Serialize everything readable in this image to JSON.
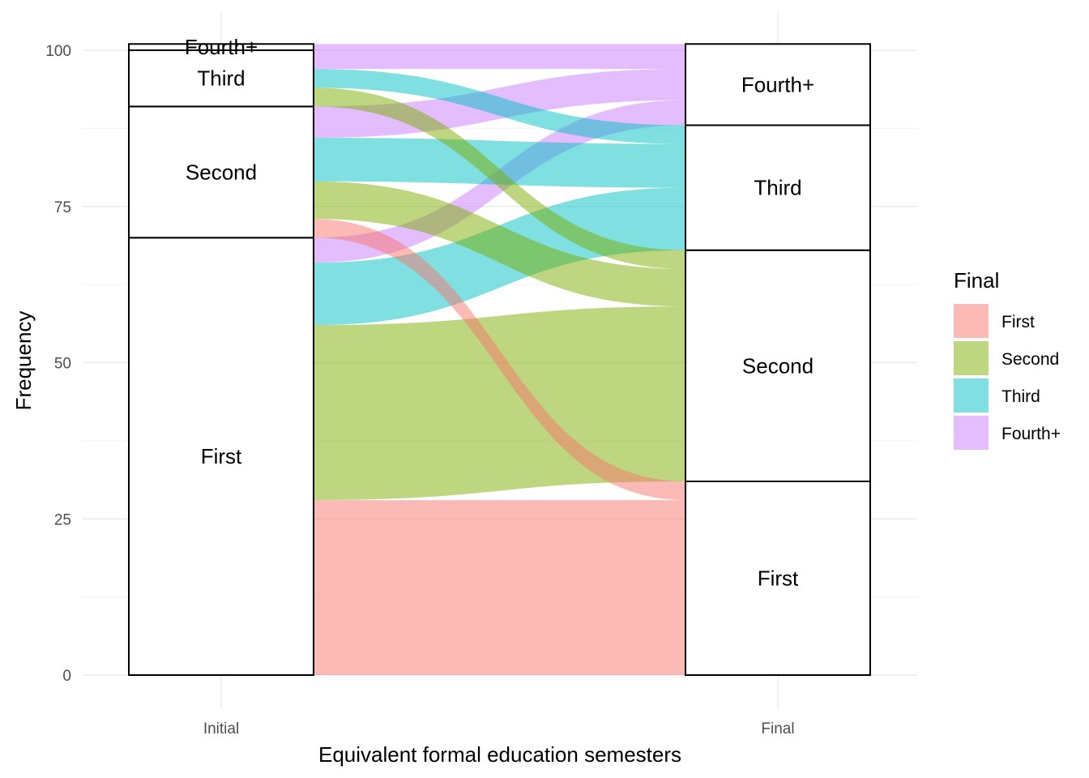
{
  "chart_data": {
    "type": "alluvial",
    "title": "",
    "xlabel": "Equivalent formal education semesters",
    "ylabel": "Frequency",
    "x_axes": [
      "Initial",
      "Final"
    ],
    "ylim": [
      0,
      101
    ],
    "y_ticks": [
      0,
      25,
      50,
      75,
      100
    ],
    "grid": true,
    "levels": [
      "First",
      "Second",
      "Third",
      "Fourth+"
    ],
    "colors": {
      "First": "#F8766D",
      "Second": "#7CAE00",
      "Third": "#00BFC4",
      "Fourth+": "#C77CFF"
    },
    "strata": {
      "Initial": [
        {
          "label": "First",
          "value": 70
        },
        {
          "label": "Second",
          "value": 21
        },
        {
          "label": "Third",
          "value": 9
        },
        {
          "label": "Fourth+",
          "value": 1
        }
      ],
      "Final": [
        {
          "label": "First",
          "value": 31
        },
        {
          "label": "Second",
          "value": 37
        },
        {
          "label": "Third",
          "value": 20
        },
        {
          "label": "Fourth+",
          "value": 13
        }
      ]
    },
    "flows": [
      {
        "from": "First",
        "to": "First",
        "value": 28
      },
      {
        "from": "First",
        "to": "Second",
        "value": 28
      },
      {
        "from": "First",
        "to": "Third",
        "value": 10
      },
      {
        "from": "First",
        "to": "Fourth+",
        "value": 4
      },
      {
        "from": "Second",
        "to": "Second",
        "value": 6
      },
      {
        "from": "Second",
        "to": "Third",
        "value": 7
      },
      {
        "from": "Second",
        "to": "Fourth+",
        "value": 5
      },
      {
        "from": "Second",
        "to": "First",
        "value": 3
      },
      {
        "from": "Third",
        "to": "Second",
        "value": 3
      },
      {
        "from": "Third",
        "to": "Third",
        "value": 3
      },
      {
        "from": "Third",
        "to": "Fourth+",
        "value": 3
      },
      {
        "from": "Fourth+",
        "to": "Fourth+",
        "value": 1
      }
    ],
    "legend": {
      "title": "Final",
      "position": "right",
      "entries": [
        "First",
        "Second",
        "Third",
        "Fourth+"
      ]
    }
  }
}
